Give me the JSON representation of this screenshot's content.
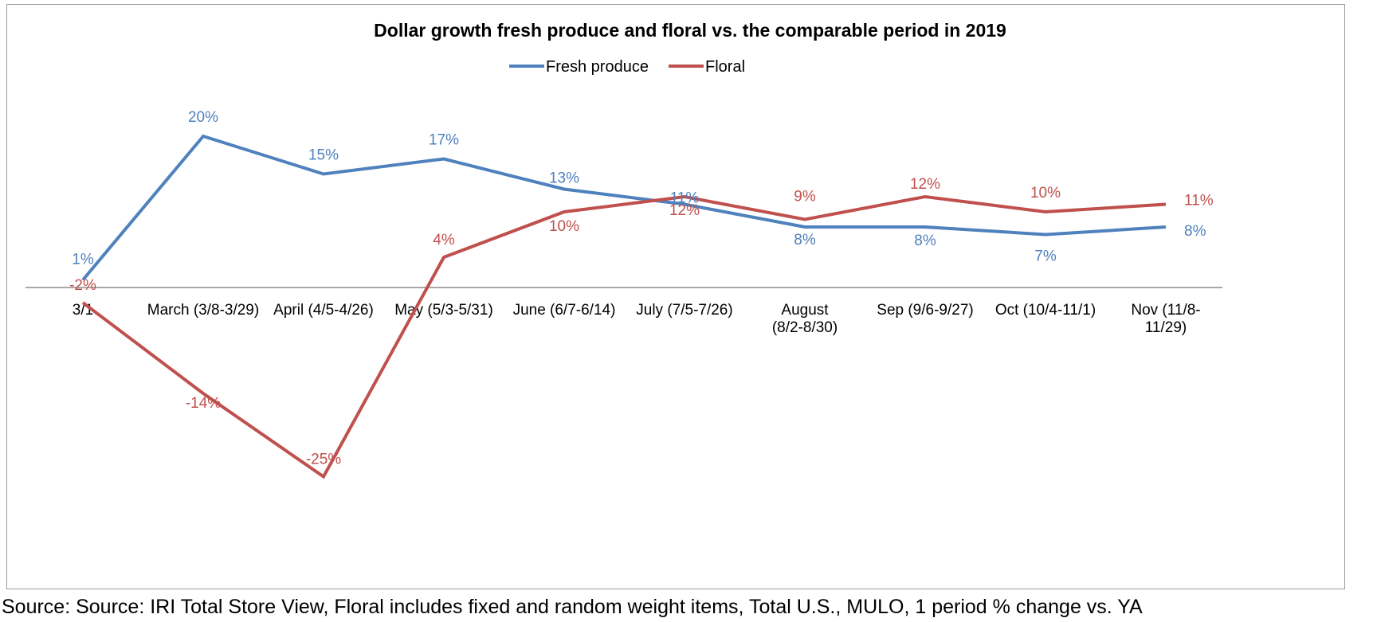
{
  "chart_data": {
    "type": "line",
    "title": "Dollar growth fresh produce and floral vs. the comparable period in 2019",
    "categories": [
      "3/1",
      "March (3/8-3/29)",
      "April (4/5-4/26)",
      "May (5/3-5/31)",
      "June (6/7-6/14)",
      "July (7/5-7/26)",
      "August (8/2-8/30)",
      "Sep (9/6-9/27)",
      "Oct (10/4-11/1)",
      "Nov (11/8-11/29)"
    ],
    "series": [
      {
        "name": "Fresh produce",
        "color": "#4f81bd",
        "values": [
          1,
          20,
          15,
          17,
          13,
          11,
          8,
          8,
          7,
          8
        ],
        "labels": [
          "1%",
          "20%",
          "15%",
          "17%",
          "13%",
          "11%",
          "8%",
          "8%",
          "7%",
          "8%"
        ]
      },
      {
        "name": "Floral",
        "color": "#c0504d",
        "values": [
          -2,
          -14,
          -25,
          4,
          10,
          12,
          9,
          12,
          10,
          11
        ],
        "labels": [
          "-2%",
          "-14%",
          "-25%",
          "4%",
          "10%",
          "12%",
          "9%",
          "12%",
          "10%",
          "11%"
        ]
      }
    ],
    "xlabel": "",
    "ylabel": "",
    "ylim": [
      -30,
      30
    ],
    "grid": false,
    "legend_position": "top-center"
  },
  "source_note": "Source: Source: IRI Total Store View, Floral includes fixed and random weight items, Total U.S., MULO, 1 period % change vs. YA"
}
